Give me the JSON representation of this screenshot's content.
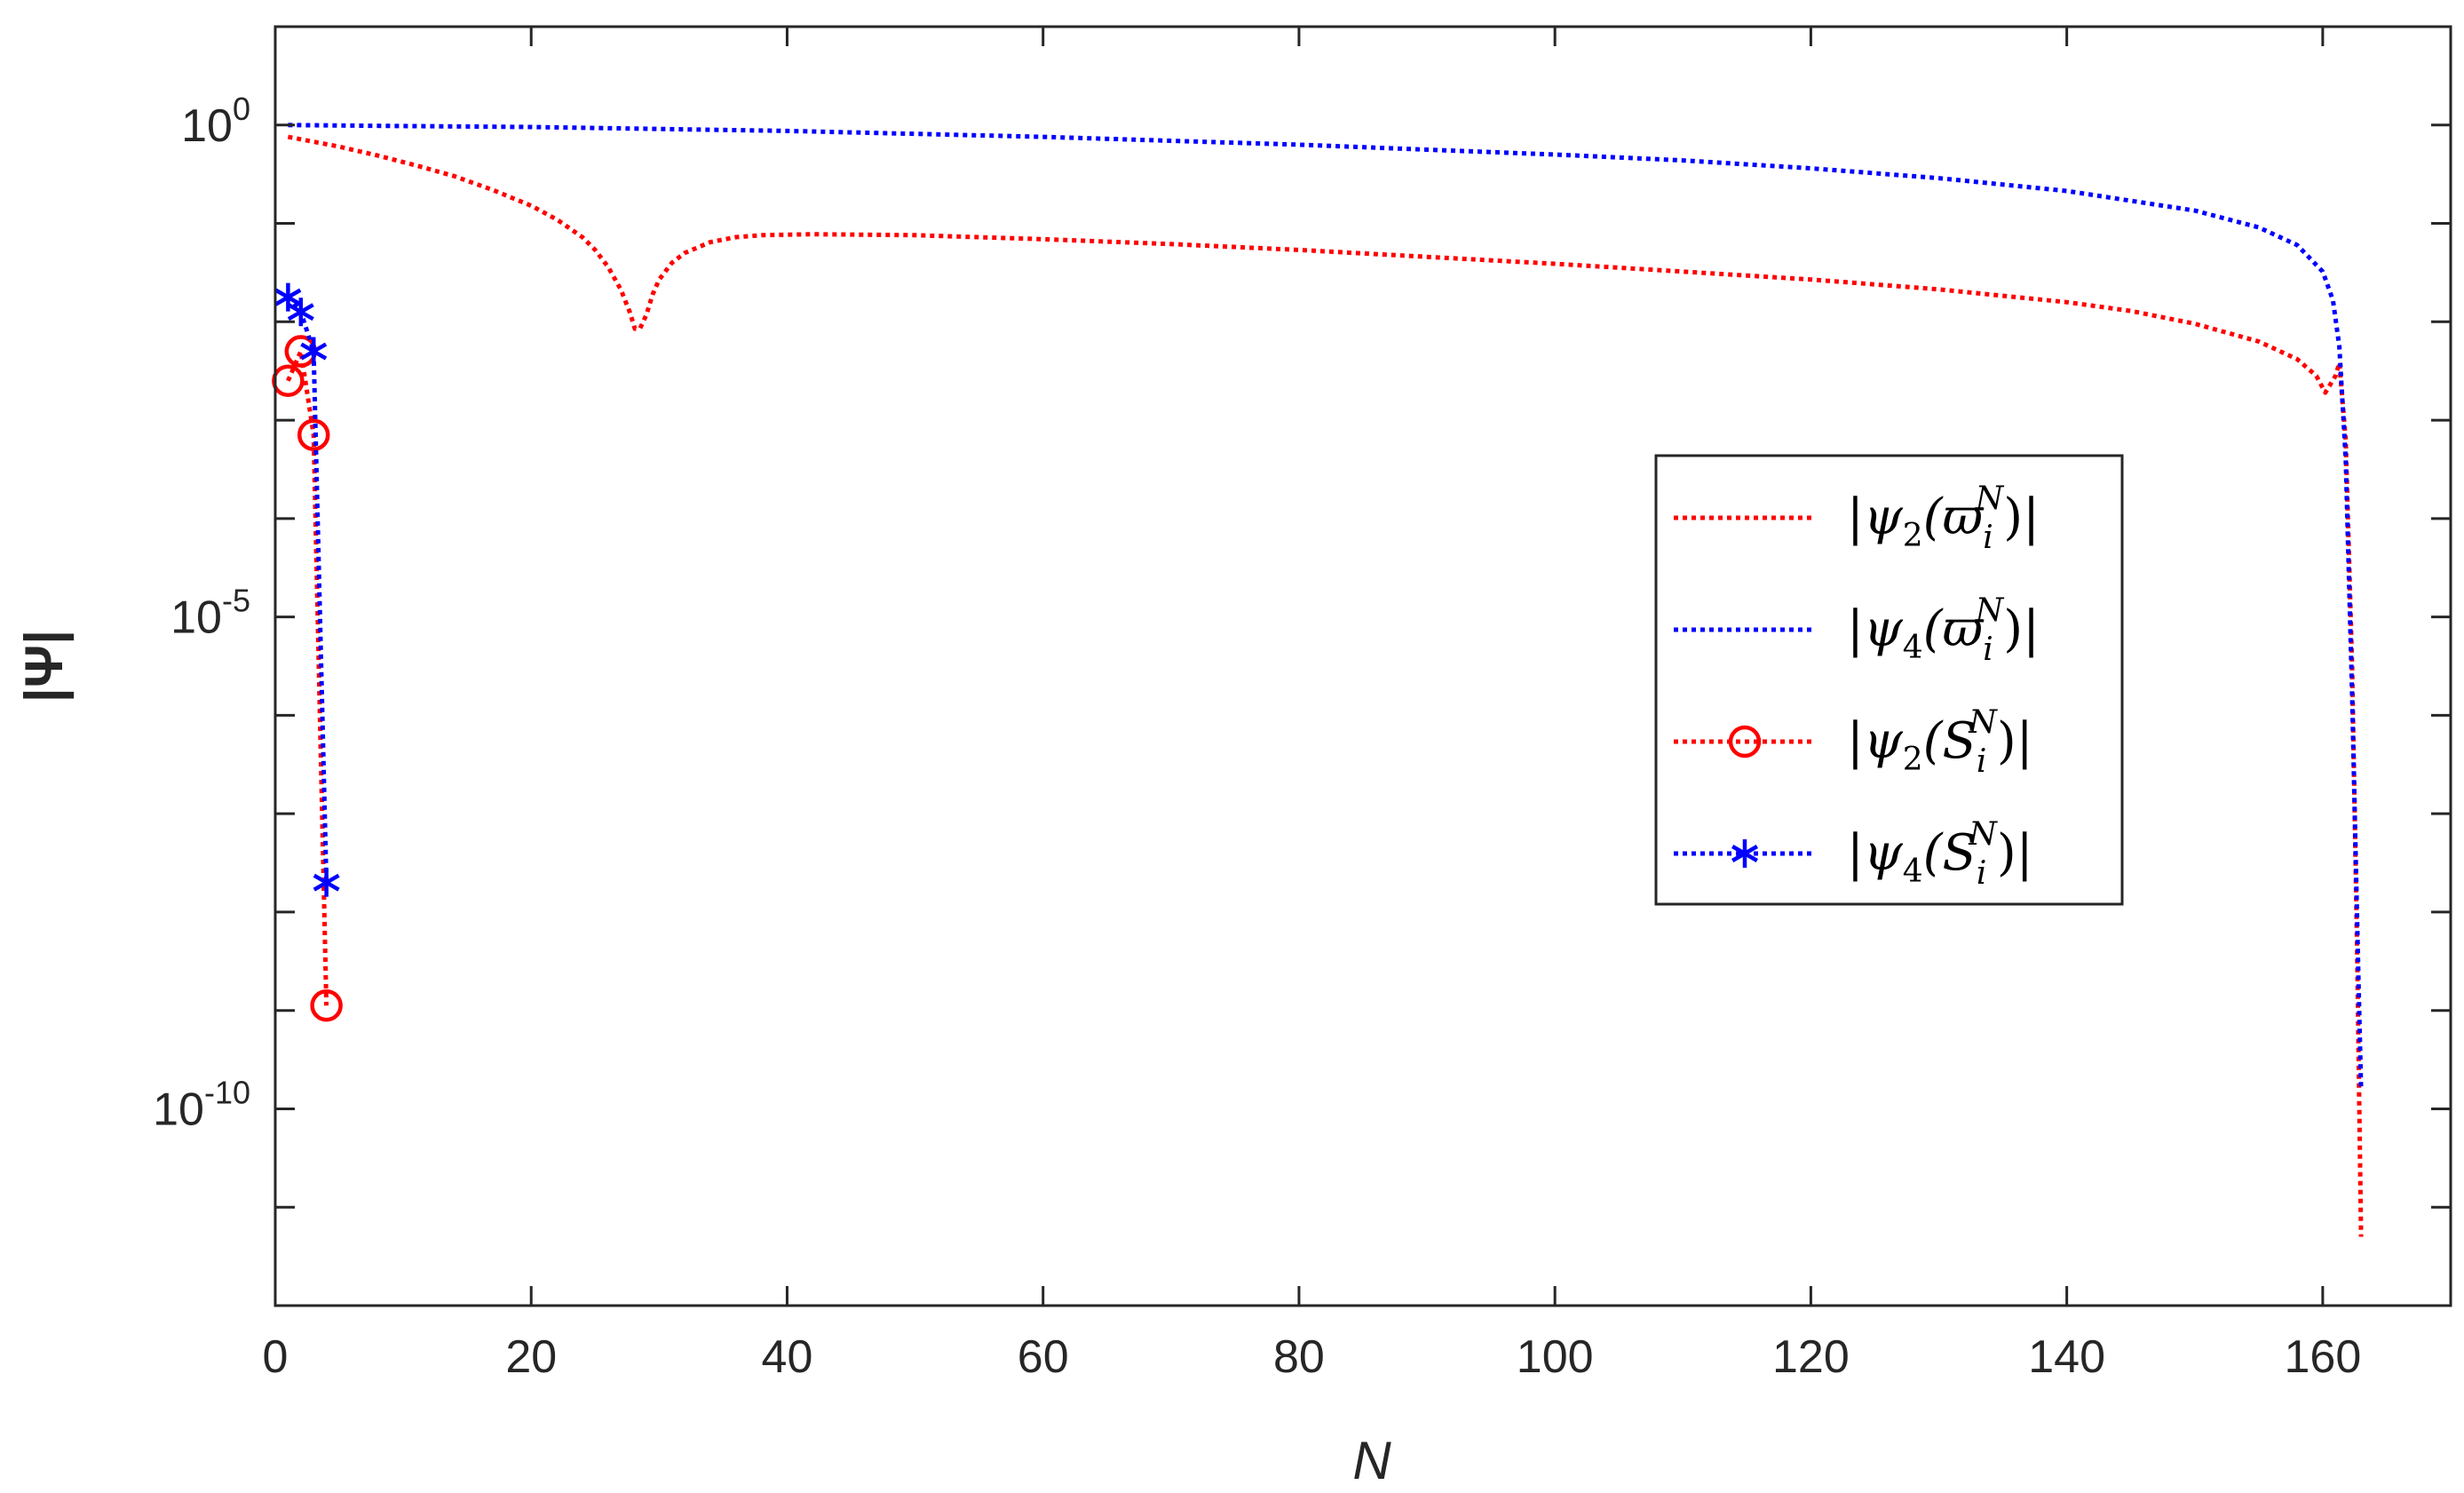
{
  "chart_data": {
    "type": "line",
    "xlabel": "N",
    "ylabel": "|Ψ|",
    "xlim": [
      0,
      170
    ],
    "ylim_log10": [
      -12,
      1
    ],
    "yscale": "log",
    "grid": false,
    "legend_position": "right-center",
    "x_ticks": [
      0,
      20,
      40,
      60,
      80,
      100,
      120,
      140,
      160
    ],
    "x_tick_labels": [
      "0",
      "20",
      "40",
      "60",
      "80",
      "100",
      "120",
      "140",
      "160"
    ],
    "y_ticks": [
      {
        "base": "10",
        "exp": "0",
        "value_log10": 0
      },
      {
        "base": "10",
        "exp": "-5",
        "value_log10": -5
      },
      {
        "base": "10",
        "exp": "-10",
        "value_log10": -10
      }
    ],
    "series": [
      {
        "name": "|ψ2(ϖiN)|",
        "legend": {
          "pre": "|ψ",
          "sub": "2",
          "mid": "(ϖ",
          "sub2": "i",
          "sup": "N",
          "post": ")|"
        },
        "color": "#ff0000",
        "style": "dotted",
        "marker": "none",
        "points_log10": [
          [
            1,
            -0.12
          ],
          [
            3,
            -0.17
          ],
          [
            5,
            -0.22
          ],
          [
            8,
            -0.31
          ],
          [
            11,
            -0.41
          ],
          [
            14,
            -0.52
          ],
          [
            17,
            -0.66
          ],
          [
            20,
            -0.82
          ],
          [
            22,
            -0.96
          ],
          [
            24,
            -1.14
          ],
          [
            25,
            -1.27
          ],
          [
            26,
            -1.44
          ],
          [
            27,
            -1.67
          ],
          [
            27.7,
            -1.9
          ],
          [
            28.1,
            -2.07
          ],
          [
            28.5,
            -2.07
          ],
          [
            29,
            -1.93
          ],
          [
            29.5,
            -1.72
          ],
          [
            30,
            -1.57
          ],
          [
            31,
            -1.4
          ],
          [
            32,
            -1.3
          ],
          [
            34,
            -1.19
          ],
          [
            36,
            -1.14
          ],
          [
            38,
            -1.12
          ],
          [
            42,
            -1.11
          ],
          [
            50,
            -1.12
          ],
          [
            60,
            -1.16
          ],
          [
            70,
            -1.21
          ],
          [
            80,
            -1.27
          ],
          [
            90,
            -1.34
          ],
          [
            100,
            -1.41
          ],
          [
            110,
            -1.49
          ],
          [
            120,
            -1.57
          ],
          [
            130,
            -1.67
          ],
          [
            140,
            -1.8
          ],
          [
            145,
            -1.89
          ],
          [
            150,
            -2.02
          ],
          [
            155,
            -2.2
          ],
          [
            158,
            -2.38
          ],
          [
            159.5,
            -2.55
          ],
          [
            160.2,
            -2.72
          ],
          [
            161,
            -2.55
          ],
          [
            161.3,
            -2.42
          ],
          [
            161.8,
            -3.2
          ],
          [
            162.3,
            -5.5
          ],
          [
            162.7,
            -8.5
          ],
          [
            163,
            -11.3
          ]
        ]
      },
      {
        "name": "|ψ4(ϖiN)|",
        "legend": {
          "pre": "|ψ",
          "sub": "4",
          "mid": "(ϖ",
          "sub2": "i",
          "sup": "N",
          "post": ")|"
        },
        "color": "#0000ff",
        "style": "dotted",
        "marker": "none",
        "points_log10": [
          [
            1,
            0
          ],
          [
            10,
            -0.01
          ],
          [
            20,
            -0.02
          ],
          [
            30,
            -0.04
          ],
          [
            40,
            -0.06
          ],
          [
            50,
            -0.09
          ],
          [
            60,
            -0.12
          ],
          [
            70,
            -0.16
          ],
          [
            80,
            -0.2
          ],
          [
            90,
            -0.25
          ],
          [
            100,
            -0.3
          ],
          [
            110,
            -0.36
          ],
          [
            120,
            -0.44
          ],
          [
            130,
            -0.54
          ],
          [
            140,
            -0.67
          ],
          [
            150,
            -0.87
          ],
          [
            155,
            -1.04
          ],
          [
            158,
            -1.22
          ],
          [
            160,
            -1.49
          ],
          [
            160.8,
            -1.78
          ],
          [
            161.3,
            -2.25
          ],
          [
            161.8,
            -3.4
          ],
          [
            162.3,
            -5.8
          ],
          [
            162.8,
            -8.7
          ],
          [
            163,
            -9.8
          ]
        ]
      },
      {
        "name": "|ψ2(SiN)|",
        "legend": {
          "pre": "|ψ",
          "sub": "2",
          "mid": "(S",
          "sub2": "i",
          "sup": "N",
          "post": ")|"
        },
        "color": "#ff0000",
        "style": "dotted",
        "marker": "circle",
        "points_log10": [
          [
            1,
            -2.6
          ],
          [
            2,
            -2.3
          ],
          [
            3,
            -3.15
          ],
          [
            4,
            -8.95
          ]
        ]
      },
      {
        "name": "|ψ4(SiN)|",
        "legend": {
          "pre": "|ψ",
          "sub": "4",
          "mid": "(S",
          "sub2": "i",
          "sup": "N",
          "post": ")|"
        },
        "color": "#0000ff",
        "style": "dotted",
        "marker": "asterisk",
        "points_log10": [
          [
            1,
            -1.75
          ],
          [
            2,
            -1.9
          ],
          [
            3,
            -2.3
          ],
          [
            4,
            -7.7
          ]
        ]
      }
    ]
  }
}
